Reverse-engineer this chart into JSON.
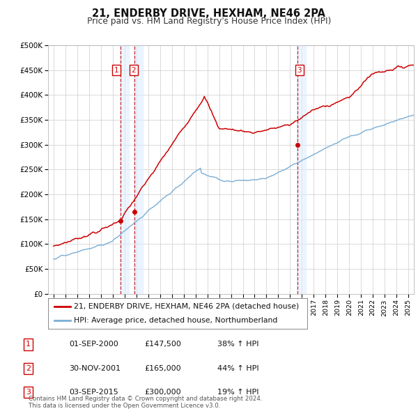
{
  "title": "21, ENDERBY DRIVE, HEXHAM, NE46 2PA",
  "subtitle": "Price paid vs. HM Land Registry's House Price Index (HPI)",
  "ylim": [
    0,
    500000
  ],
  "yticks": [
    0,
    50000,
    100000,
    150000,
    200000,
    250000,
    300000,
    350000,
    400000,
    450000,
    500000
  ],
  "ytick_labels": [
    "£0",
    "£50K",
    "£100K",
    "£150K",
    "£200K",
    "£250K",
    "£300K",
    "£350K",
    "£400K",
    "£450K",
    "£500K"
  ],
  "line_color_property": "#cc0000",
  "line_color_hpi": "#7aaed6",
  "marker_color": "#cc0000",
  "purchase_date_nums": [
    2000.708,
    2001.875,
    2015.672
  ],
  "purchase_prices": [
    147500,
    165000,
    300000
  ],
  "purchase_labels": [
    "1",
    "2",
    "3"
  ],
  "vline_color": "#cc0000",
  "vline_shade": "#ddeeff",
  "legend_label_property": "21, ENDERBY DRIVE, HEXHAM, NE46 2PA (detached house)",
  "legend_label_hpi": "HPI: Average price, detached house, Northumberland",
  "table_rows": [
    [
      "1",
      "01-SEP-2000",
      "£147,500",
      "38% ↑ HPI"
    ],
    [
      "2",
      "30-NOV-2001",
      "£165,000",
      "44% ↑ HPI"
    ],
    [
      "3",
      "03-SEP-2015",
      "£300,000",
      "19% ↑ HPI"
    ]
  ],
  "footer": "Contains HM Land Registry data © Crown copyright and database right 2024.\nThis data is licensed under the Open Government Licence v3.0.",
  "background_color": "#ffffff",
  "grid_color": "#cccccc"
}
